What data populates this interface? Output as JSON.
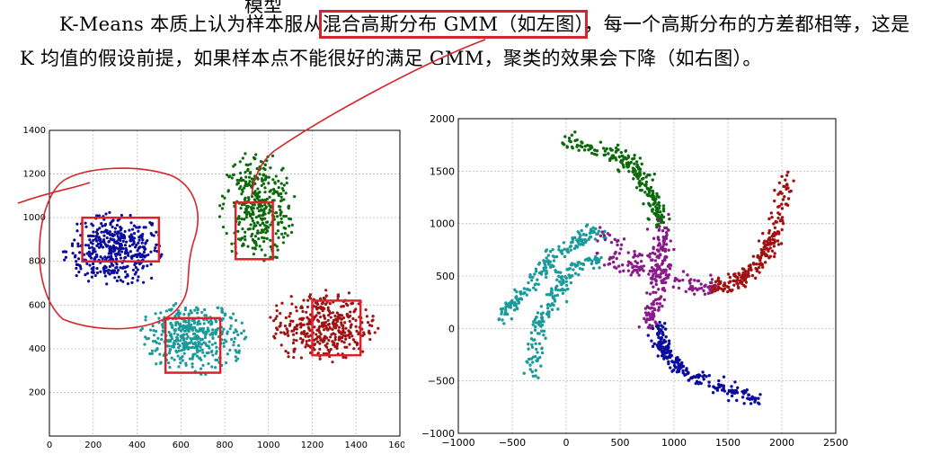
{
  "paragraph": {
    "cut_top_text": "模型",
    "line1_before": "K-Means 本质上认为样本服从",
    "line1_highlight": "混合高斯分布 GMM（如左图）",
    "line1_after": "，每一个高斯分布的方差都相等，这是 K 均值的假设前提，如果样本点不能很好的满足 GMM，聚类的效果会下降（如右图）。"
  },
  "colors": {
    "blue": "#0b0b9e",
    "green": "#0b6b0b",
    "teal": "#1a9a9a",
    "red": "#a01212",
    "purple": "#8a1a8a",
    "annotation": "#d8232a"
  },
  "chart_data": [
    {
      "type": "scatter",
      "title": "",
      "xlabel": "",
      "ylabel": "",
      "xlim": [
        0,
        1600
      ],
      "ylim": [
        0,
        1400
      ],
      "x_ticks": [
        "0",
        "200",
        "400",
        "600",
        "800",
        "1000",
        "1200",
        "1400",
        "1600"
      ],
      "y_ticks": [
        "200",
        "400",
        "600",
        "800",
        "1000",
        "1200",
        "1400"
      ],
      "grid": true,
      "series": [
        {
          "color": "blue",
          "center": [
            300,
            850
          ],
          "spread": [
            150,
            110
          ],
          "count": 420
        },
        {
          "color": "green",
          "center": [
            950,
            1050
          ],
          "spread": [
            110,
            170
          ],
          "count": 380
        },
        {
          "color": "teal",
          "center": [
            650,
            450
          ],
          "spread": [
            160,
            110
          ],
          "count": 420
        },
        {
          "color": "red",
          "center": [
            1250,
            500
          ],
          "spread": [
            160,
            110
          ],
          "count": 400
        }
      ],
      "annotation_boxes": [
        {
          "x": [
            150,
            500
          ],
          "y": [
            800,
            1000
          ]
        },
        {
          "x": [
            850,
            1020
          ],
          "y": [
            810,
            1070
          ]
        },
        {
          "x": [
            530,
            780
          ],
          "y": [
            290,
            540
          ]
        },
        {
          "x": [
            1200,
            1420
          ],
          "y": [
            370,
            620
          ]
        }
      ]
    },
    {
      "type": "scatter",
      "title": "",
      "xlabel": "",
      "ylabel": "",
      "xlim": [
        -1000,
        2500
      ],
      "ylim": [
        -1000,
        2000
      ],
      "x_ticks": [
        "−1000",
        "−500",
        "0",
        "500",
        "1000",
        "1500",
        "2000",
        "2500"
      ],
      "y_ticks": [
        "−1000",
        "−500",
        "0",
        "500",
        "1000",
        "1500",
        "2000"
      ],
      "grid": true,
      "spiral_center": [
        900,
        500
      ],
      "series": [
        {
          "color": "green",
          "arm": "top",
          "count": 230
        },
        {
          "color": "red",
          "arm": "right",
          "count": 230
        },
        {
          "color": "blue",
          "arm": "bottom",
          "count": 230
        },
        {
          "color": "teal",
          "arm": "left-upper",
          "count": 180
        },
        {
          "color": "teal",
          "arm": "left-lower",
          "count": 180
        },
        {
          "color": "purple",
          "arm": "core",
          "count": 300
        }
      ]
    }
  ]
}
